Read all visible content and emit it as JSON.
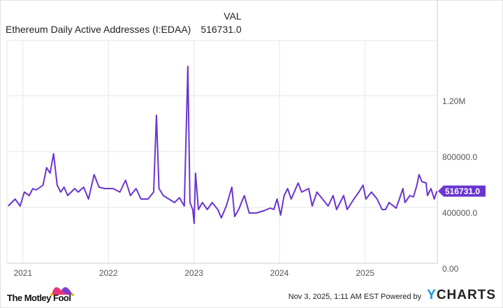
{
  "header": {
    "column_label": "VAL",
    "series_name": "Ethereum Daily Active Addresses (I:EDAA)",
    "series_value": "516731.0"
  },
  "footer": {
    "timestamp": "Nov 3, 2025, 1:11 AM EST",
    "powered_by": "Powered by",
    "brand_y": "Y",
    "brand_rest": "CHARTS",
    "logo_text": "The Motley Fool"
  },
  "colors": {
    "line": "#6a35d0",
    "grid": "#e6e6e6",
    "axis": "#cccccc"
  },
  "chart_data": {
    "type": "line",
    "title": "",
    "xlabel": "",
    "ylabel": "",
    "xlim": [
      "2020-10-25",
      "2025-11-05"
    ],
    "ylim": [
      0,
      1450000
    ],
    "x_ticks": [
      "2021",
      "2022",
      "2023",
      "2024",
      "2025"
    ],
    "y_ticks": [
      {
        "value": 0,
        "label": "0.00"
      },
      {
        "value": 400000,
        "label": "400000.0"
      },
      {
        "value": 800000,
        "label": "800000.0"
      },
      {
        "value": 1200000,
        "label": "1.20M"
      }
    ],
    "grid": true,
    "y_axis_side": "right",
    "last_value_label": "516731.0",
    "series": [
      {
        "name": "Ethereum Daily Active Addresses (I:EDAA)",
        "points": [
          [
            "2020-10-30",
            410000
          ],
          [
            "2020-11-29",
            460000
          ],
          [
            "2020-12-20",
            410000
          ],
          [
            "2021-01-07",
            510000
          ],
          [
            "2021-01-28",
            485000
          ],
          [
            "2021-02-12",
            535000
          ],
          [
            "2021-02-27",
            525000
          ],
          [
            "2021-03-28",
            560000
          ],
          [
            "2021-04-12",
            685000
          ],
          [
            "2021-04-27",
            645000
          ],
          [
            "2021-05-12",
            785000
          ],
          [
            "2021-05-27",
            560000
          ],
          [
            "2021-06-11",
            510000
          ],
          [
            "2021-06-26",
            545000
          ],
          [
            "2021-07-11",
            485000
          ],
          [
            "2021-08-10",
            535000
          ],
          [
            "2021-08-25",
            510000
          ],
          [
            "2021-09-17",
            545000
          ],
          [
            "2021-10-08",
            460000
          ],
          [
            "2021-11-01",
            635000
          ],
          [
            "2021-11-22",
            545000
          ],
          [
            "2021-12-16",
            535000
          ],
          [
            "2022-01-21",
            535000
          ],
          [
            "2022-02-19",
            510000
          ],
          [
            "2022-03-15",
            595000
          ],
          [
            "2022-04-05",
            485000
          ],
          [
            "2022-04-29",
            535000
          ],
          [
            "2022-05-20",
            460000
          ],
          [
            "2022-06-19",
            460000
          ],
          [
            "2022-07-13",
            510000
          ],
          [
            "2022-07-25",
            1060000
          ],
          [
            "2022-08-05",
            535000
          ],
          [
            "2022-08-23",
            485000
          ],
          [
            "2022-09-16",
            460000
          ],
          [
            "2022-10-10",
            435000
          ],
          [
            "2022-10-31",
            470000
          ],
          [
            "2022-11-21",
            410000
          ],
          [
            "2022-12-06",
            1410000
          ],
          [
            "2022-12-15",
            435000
          ],
          [
            "2022-12-27",
            385000
          ],
          [
            "2023-01-02",
            285000
          ],
          [
            "2023-01-08",
            645000
          ],
          [
            "2023-01-20",
            385000
          ],
          [
            "2023-02-06",
            435000
          ],
          [
            "2023-02-27",
            385000
          ],
          [
            "2023-03-20",
            435000
          ],
          [
            "2023-04-13",
            385000
          ],
          [
            "2023-04-28",
            325000
          ],
          [
            "2023-05-19",
            410000
          ],
          [
            "2023-06-12",
            545000
          ],
          [
            "2023-06-24",
            335000
          ],
          [
            "2023-07-11",
            385000
          ],
          [
            "2023-08-04",
            485000
          ],
          [
            "2023-08-25",
            360000
          ],
          [
            "2023-09-24",
            360000
          ],
          [
            "2023-10-24",
            375000
          ],
          [
            "2023-11-23",
            395000
          ],
          [
            "2023-12-08",
            385000
          ],
          [
            "2023-12-22",
            460000
          ],
          [
            "2024-01-06",
            345000
          ],
          [
            "2024-01-21",
            485000
          ],
          [
            "2024-02-05",
            535000
          ],
          [
            "2024-02-20",
            460000
          ],
          [
            "2024-03-21",
            575000
          ],
          [
            "2024-04-05",
            510000
          ],
          [
            "2024-05-05",
            535000
          ],
          [
            "2024-05-20",
            410000
          ],
          [
            "2024-06-09",
            510000
          ],
          [
            "2024-07-03",
            460000
          ],
          [
            "2024-07-27",
            410000
          ],
          [
            "2024-08-17",
            485000
          ],
          [
            "2024-09-01",
            385000
          ],
          [
            "2024-10-01",
            485000
          ],
          [
            "2024-10-16",
            385000
          ],
          [
            "2024-11-14",
            460000
          ],
          [
            "2024-12-05",
            510000
          ],
          [
            "2024-12-23",
            560000
          ],
          [
            "2025-01-04",
            460000
          ],
          [
            "2025-01-28",
            510000
          ],
          [
            "2025-02-21",
            460000
          ],
          [
            "2025-03-14",
            385000
          ],
          [
            "2025-03-29",
            385000
          ],
          [
            "2025-04-13",
            435000
          ],
          [
            "2025-05-13",
            395000
          ],
          [
            "2025-05-27",
            460000
          ],
          [
            "2025-06-11",
            535000
          ],
          [
            "2025-06-20",
            435000
          ],
          [
            "2025-07-11",
            485000
          ],
          [
            "2025-07-26",
            475000
          ],
          [
            "2025-08-10",
            560000
          ],
          [
            "2025-08-19",
            635000
          ],
          [
            "2025-08-31",
            585000
          ],
          [
            "2025-09-18",
            575000
          ],
          [
            "2025-09-24",
            485000
          ],
          [
            "2025-10-09",
            535000
          ],
          [
            "2025-10-23",
            460000
          ],
          [
            "2025-11-03",
            516731
          ]
        ]
      }
    ]
  }
}
